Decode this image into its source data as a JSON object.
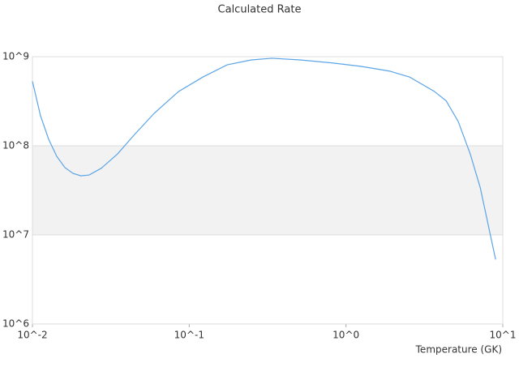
{
  "chart_data": {
    "type": "line",
    "title": "Calculated Rate",
    "x_label": "Temperature (GK)",
    "x": [
      0.01,
      0.01126,
      0.0127,
      0.0143,
      0.0161,
      0.01815,
      0.0204,
      0.023,
      0.0275,
      0.0349,
      0.0443,
      0.0597,
      0.0854,
      0.122,
      0.1745,
      0.249,
      0.336,
      0.509,
      0.82,
      1.24,
      1.89,
      2.55,
      3.64,
      4.35,
      5.2,
      6.2,
      7.18,
      9.0
    ],
    "series": [
      {
        "name": "Rate",
        "color": "#5ba4e6",
        "values": [
          530000000,
          217000000,
          118000000,
          76000000,
          57000000,
          49000000,
          46000000,
          47000000,
          56000000,
          81000000,
          131000000,
          231000000,
          406000000,
          590000000,
          810000000,
          920000000,
          960000000,
          920000000,
          850000000,
          780000000,
          690000000,
          590000000,
          410000000,
          320000000,
          187000000,
          81000000,
          34000000,
          5300000
        ]
      }
    ],
    "xlim": [
      0.01,
      10
    ],
    "ylim": [
      1000000,
      1000000000
    ],
    "xticks": [
      {
        "value": 0.01,
        "label": "10^-2"
      },
      {
        "value": 0.1,
        "label": "10^-1"
      },
      {
        "value": 1,
        "label": "10^0"
      },
      {
        "value": 10,
        "label": "10^1"
      }
    ],
    "yticks": [
      {
        "value": 1000000,
        "label": "10^6"
      },
      {
        "value": 10000000,
        "label": "10^7"
      },
      {
        "value": 100000000,
        "label": "10^8"
      },
      {
        "value": 1000000000,
        "label": "10^9"
      }
    ],
    "xscale": "log",
    "yscale": "log",
    "grid_bands": true,
    "band_color": "#f2f2f2"
  }
}
